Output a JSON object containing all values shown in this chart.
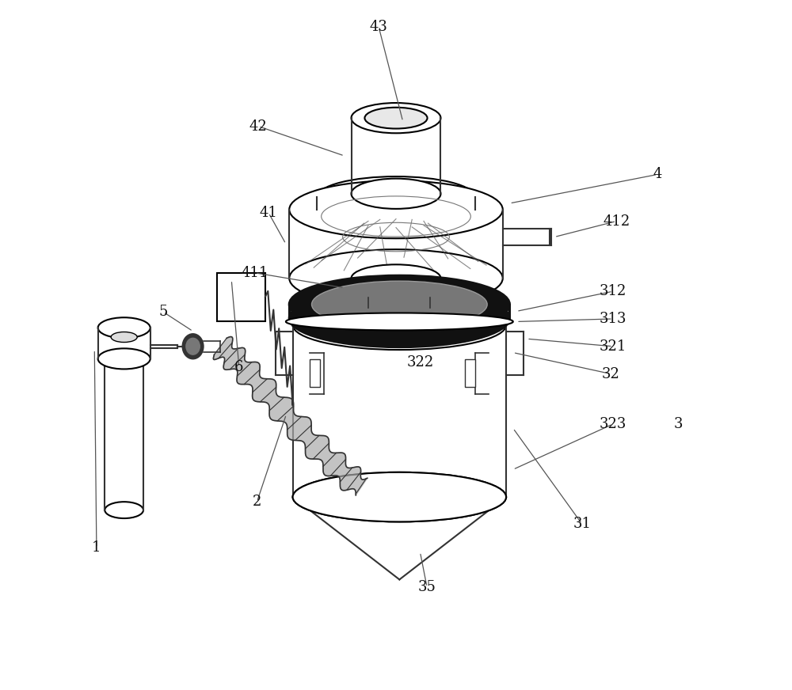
{
  "bg_color": "#ffffff",
  "line_color": "#333333",
  "dark_color": "#111111",
  "gray_color": "#888888",
  "light_gray": "#cccccc",
  "label_fontsize": 13
}
